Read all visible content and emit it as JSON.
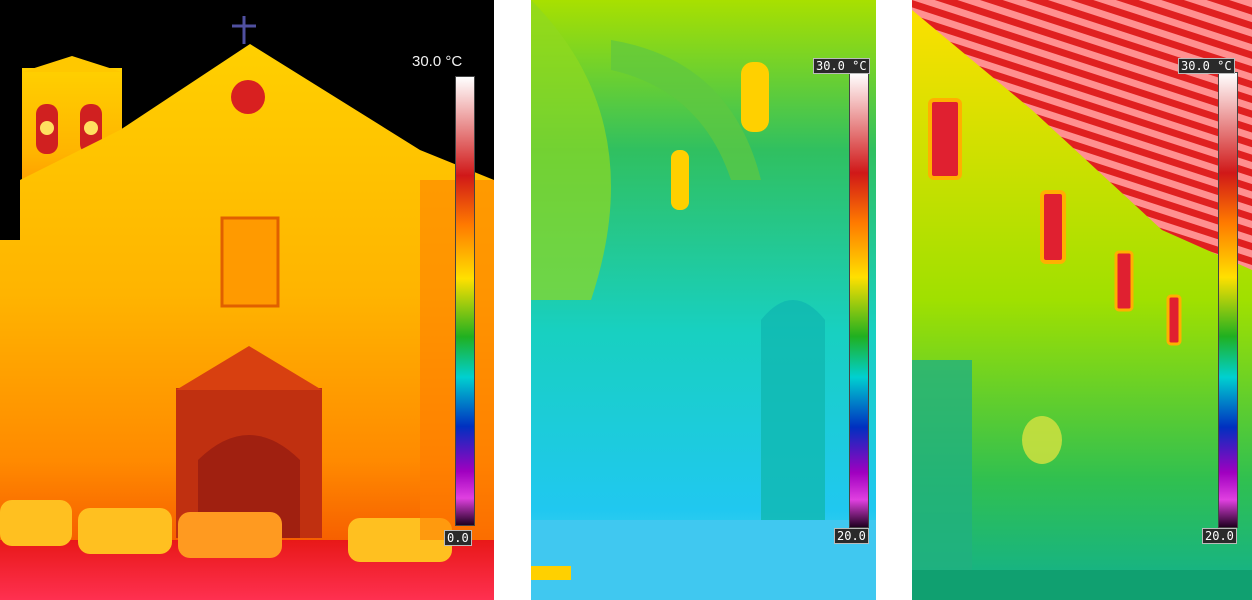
{
  "panels": [
    {
      "id": "facade",
      "scale_max": "30.0 °C",
      "scale_min": "0.0"
    },
    {
      "id": "nave-arches",
      "scale_max": "30.0 °C",
      "scale_min": "20.0"
    },
    {
      "id": "nave-ceiling",
      "scale_max": "30.0 °C",
      "scale_min": "20.0"
    }
  ],
  "colors": {
    "hot": "#e01010",
    "warm": "#ffb000",
    "mid": "#ffe000",
    "cool": "#20c030",
    "cold": "#00d8d8",
    "sky": "#000000"
  }
}
